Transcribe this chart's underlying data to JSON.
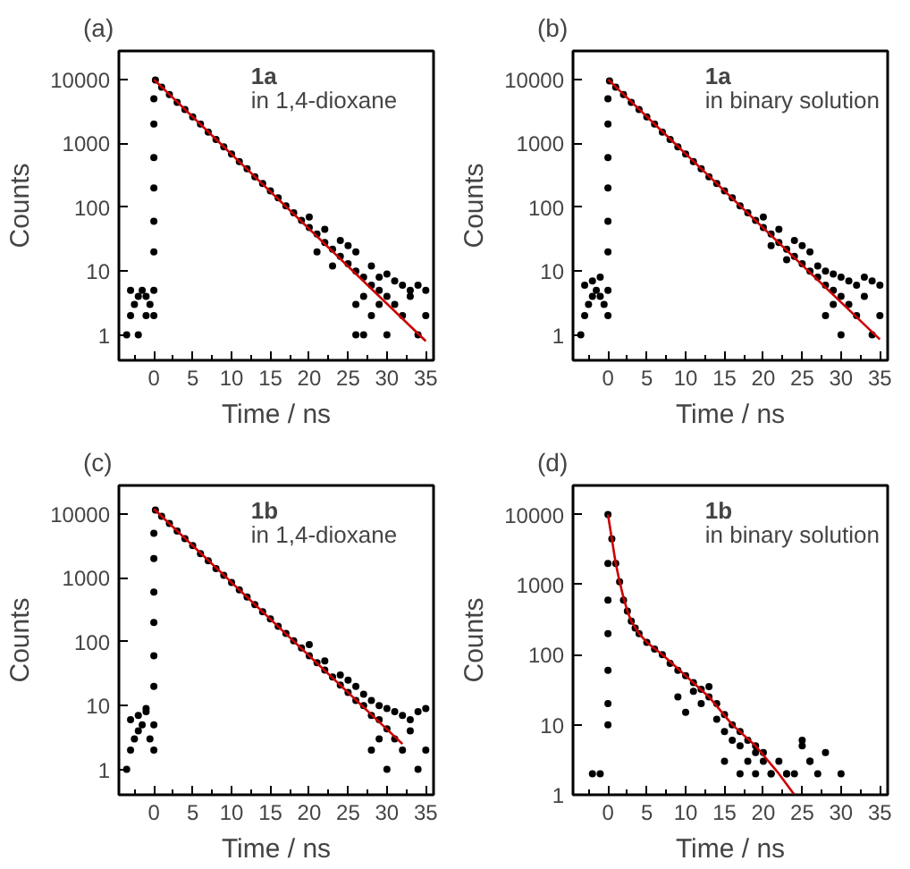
{
  "chart_data": [
    {
      "type": "scatter",
      "title": "(a)",
      "xlabel": "Time / ns",
      "ylabel": "Counts",
      "annotations": [
        "1a",
        "in 1,4-dioxane"
      ],
      "log": "y",
      "grid": false,
      "xlim": [
        -4.5,
        36
      ],
      "xticks": [
        0,
        5,
        10,
        15,
        20,
        25,
        30,
        35
      ],
      "ylim": [
        0.4,
        28000
      ],
      "yticks": [
        1,
        10,
        100,
        1000,
        10000
      ],
      "series": [
        {
          "marker": "circle",
          "color": "#000000",
          "x": [
            -3.5,
            -3,
            -2.5,
            -2,
            -1.5,
            -1,
            -0.5,
            -3,
            -2,
            -1,
            0,
            0,
            0,
            0,
            0,
            0,
            0,
            0,
            0.2,
            1,
            2,
            3,
            4,
            5,
            6,
            7,
            8,
            9,
            10,
            11,
            12,
            13,
            14,
            15,
            16,
            17,
            18,
            19,
            20,
            21,
            22,
            23,
            24,
            25,
            26,
            27,
            28,
            29,
            30,
            20,
            21,
            22,
            23,
            24,
            25,
            26,
            27,
            28,
            29,
            30,
            31,
            32,
            33,
            34,
            35,
            26,
            28,
            30,
            32,
            34,
            31,
            33,
            27,
            29,
            35,
            26
          ],
          "values": [
            1,
            2,
            3,
            4,
            5,
            2,
            3,
            5,
            1,
            4,
            2,
            5,
            20,
            60,
            200,
            600,
            2000,
            5000,
            9800,
            7600,
            5800,
            4400,
            3400,
            2600,
            2000,
            1500,
            1150,
            880,
            680,
            520,
            400,
            300,
            235,
            180,
            140,
            105,
            82,
            62,
            48,
            38,
            28,
            22,
            17,
            13,
            10,
            8,
            6,
            5,
            4,
            70,
            20,
            45,
            12,
            30,
            25,
            20,
            4,
            12,
            8,
            9,
            7,
            6,
            5,
            6,
            5,
            3,
            2,
            1,
            2,
            1,
            3,
            4,
            1,
            3,
            2,
            1
          ]
        },
        {
          "type": "line",
          "color": "#cc0000",
          "x": [
            0,
            35
          ],
          "values": [
            10000,
            0.8
          ]
        }
      ]
    },
    {
      "type": "scatter",
      "title": "(b)",
      "xlabel": "Time / ns",
      "ylabel": "Counts",
      "annotations": [
        "1a",
        "in binary solution"
      ],
      "log": "y",
      "grid": false,
      "xlim": [
        -4.5,
        36
      ],
      "xticks": [
        0,
        5,
        10,
        15,
        20,
        25,
        30,
        35
      ],
      "ylim": [
        0.4,
        28000
      ],
      "yticks": [
        1,
        10,
        100,
        1000,
        10000
      ],
      "series": [
        {
          "marker": "circle",
          "color": "#000000",
          "x": [
            -3.5,
            -3,
            -2.5,
            -2,
            -1.5,
            -1,
            -0.5,
            -3,
            -2,
            -1,
            0,
            0,
            0,
            0,
            0,
            0,
            0,
            0,
            0.2,
            1,
            2,
            3,
            4,
            5,
            6,
            7,
            8,
            9,
            10,
            11,
            12,
            13,
            14,
            15,
            16,
            17,
            18,
            19,
            20,
            21,
            22,
            23,
            24,
            25,
            26,
            27,
            28,
            29,
            30,
            20,
            21,
            22,
            23,
            24,
            25,
            26,
            27,
            28,
            29,
            30,
            31,
            32,
            33,
            34,
            35,
            28,
            30,
            32,
            34,
            31,
            33,
            29,
            35
          ],
          "values": [
            1,
            2,
            3,
            4,
            5,
            8,
            3,
            6,
            7,
            4,
            2,
            5,
            20,
            60,
            200,
            600,
            2000,
            5000,
            9500,
            7600,
            5800,
            4400,
            3400,
            2600,
            2000,
            1500,
            1150,
            880,
            680,
            520,
            400,
            300,
            235,
            180,
            140,
            105,
            82,
            62,
            48,
            38,
            28,
            22,
            17,
            13,
            10,
            8,
            6,
            5,
            4,
            70,
            25,
            45,
            15,
            30,
            25,
            20,
            12,
            10,
            9,
            8,
            7,
            6,
            8,
            7,
            6,
            2,
            1,
            2,
            1,
            3,
            4,
            3,
            2
          ]
        },
        {
          "type": "line",
          "color": "#cc0000",
          "x": [
            0,
            35
          ],
          "values": [
            10000,
            0.85
          ]
        }
      ]
    },
    {
      "type": "scatter",
      "title": "(c)",
      "xlabel": "Time / ns",
      "ylabel": "Counts",
      "annotations": [
        "1b",
        "in 1,4-dioxane"
      ],
      "log": "y",
      "grid": false,
      "xlim": [
        -4.5,
        36
      ],
      "xticks": [
        0,
        5,
        10,
        15,
        20,
        25,
        30,
        35
      ],
      "ylim": [
        0.4,
        28000
      ],
      "yticks": [
        1,
        10,
        100,
        1000,
        10000
      ],
      "series": [
        {
          "marker": "circle",
          "color": "#000000",
          "x": [
            -3.5,
            -3,
            -2.5,
            -2,
            -1.5,
            -1,
            -0.5,
            -3,
            -2,
            -1,
            0,
            0,
            0,
            0,
            0,
            0,
            0,
            0,
            0.2,
            1,
            2,
            3,
            4,
            5,
            6,
            7,
            8,
            9,
            10,
            11,
            12,
            13,
            14,
            15,
            16,
            17,
            18,
            19,
            20,
            21,
            22,
            23,
            24,
            25,
            26,
            27,
            28,
            29,
            30,
            20,
            22,
            24,
            25,
            26,
            27,
            28,
            29,
            30,
            31,
            32,
            33,
            34,
            35,
            28,
            30,
            32,
            34,
            31,
            33,
            29,
            35
          ],
          "values": [
            1,
            2,
            3,
            4,
            5,
            8,
            3,
            6,
            7,
            9,
            2,
            5,
            20,
            60,
            200,
            600,
            2000,
            5000,
            11500,
            9200,
            7100,
            5400,
            4100,
            3200,
            2400,
            1850,
            1400,
            1100,
            850,
            650,
            500,
            380,
            295,
            227,
            175,
            135,
            103,
            80,
            60,
            47,
            36,
            28,
            21,
            16,
            12,
            10,
            7,
            6,
            4.3,
            90,
            50,
            30,
            25,
            20,
            15,
            12,
            10,
            9,
            8,
            7,
            6,
            8,
            9,
            2,
            1,
            2,
            1,
            3,
            4,
            3,
            2
          ]
        },
        {
          "type": "line",
          "color": "#cc0000",
          "x": [
            0,
            32
          ],
          "values": [
            12000,
            2.5
          ]
        }
      ]
    },
    {
      "type": "scatter",
      "title": "(d)",
      "xlabel": "Time / ns",
      "ylabel": "Counts",
      "annotations": [
        "1b",
        "in binary solution"
      ],
      "log": "y",
      "grid": false,
      "xlim": [
        -4.5,
        36
      ],
      "xticks": [
        0,
        5,
        10,
        15,
        20,
        25,
        30,
        35
      ],
      "ylim": [
        1,
        26000
      ],
      "yticks": [
        1,
        10,
        100,
        1000,
        10000
      ],
      "series": [
        {
          "marker": "circle",
          "color": "#000000",
          "x": [
            -2,
            -1,
            0,
            0,
            0,
            0,
            0,
            0,
            0,
            0.5,
            1,
            1.5,
            2,
            2.5,
            3,
            3.5,
            4,
            5,
            6,
            7,
            8,
            9,
            10,
            11,
            12,
            13,
            14,
            15,
            16,
            17,
            18,
            19,
            20,
            9,
            10,
            11,
            12,
            13,
            14,
            15,
            16,
            17,
            18,
            19,
            20,
            21,
            22,
            23,
            24,
            25,
            26,
            27,
            28,
            30,
            15,
            17,
            19,
            21,
            23,
            25,
            26
          ],
          "values": [
            2,
            2,
            10,
            20,
            60,
            200,
            600,
            2000,
            10000,
            4500,
            2000,
            1100,
            600,
            420,
            300,
            240,
            200,
            150,
            120,
            100,
            75,
            60,
            50,
            40,
            32,
            25,
            20,
            14,
            10,
            8,
            6,
            5,
            4,
            25,
            15,
            30,
            20,
            35,
            12,
            8,
            6,
            5,
            3,
            4,
            3,
            2,
            3,
            2,
            2,
            6,
            3,
            2,
            4,
            2,
            3,
            2,
            2,
            2,
            2,
            5,
            3
          ]
        },
        {
          "type": "line",
          "color": "#cc0000",
          "x": [
            0,
            0.5,
            1,
            1.5,
            2,
            2.5,
            3,
            4,
            5,
            7,
            10,
            13,
            16,
            19,
            22,
            24
          ],
          "values": [
            10000,
            4500,
            2000,
            1100,
            650,
            420,
            300,
            200,
            150,
            100,
            50,
            25,
            10,
            5,
            2,
            1
          ]
        }
      ]
    }
  ]
}
